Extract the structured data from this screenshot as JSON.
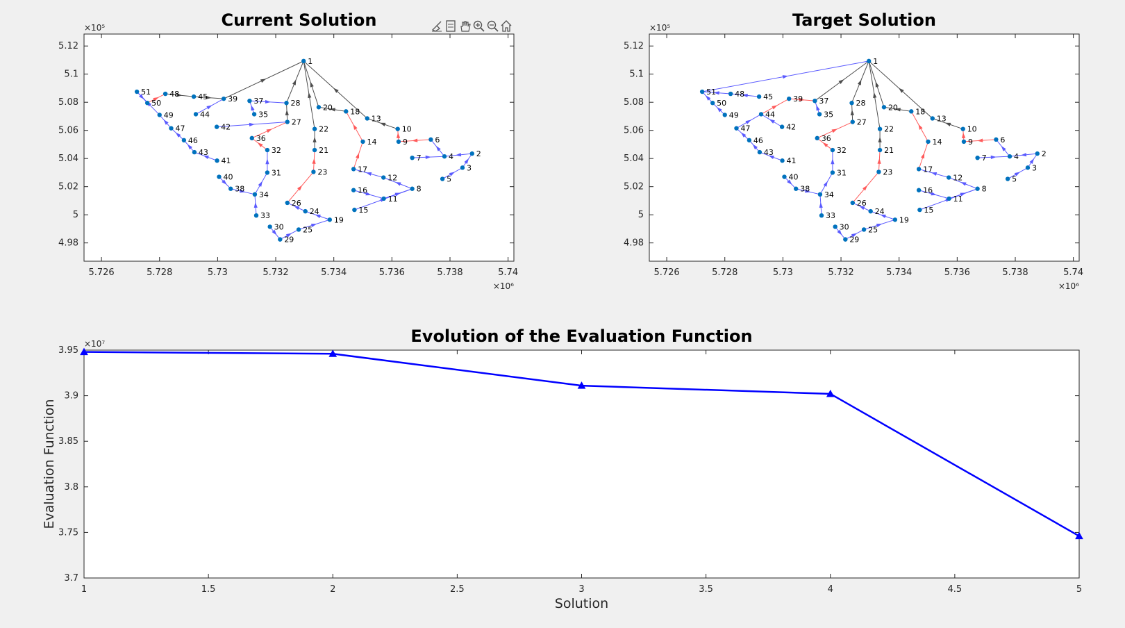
{
  "toolbar": {
    "icons": [
      "brush-icon",
      "datatip-icon",
      "pan-icon",
      "zoom-in-icon",
      "zoom-out-icon",
      "home-icon"
    ]
  },
  "colors": {
    "node": "#0072bd",
    "edge_gray": "#4d4d4d",
    "edge_blue": "#5a5aff",
    "edge_red": "#ff5a5a",
    "line": "#0000ff"
  },
  "chart_data": [
    {
      "type": "scatter",
      "title": "Current Solution",
      "xlim": [
        5725400.0,
        5740200.0
      ],
      "ylim": [
        496700.0,
        512850.0
      ],
      "x_ticks": [
        5726000.0,
        5728000.0,
        5730000.0,
        5732000.0,
        5734000.0,
        5736000.0,
        5738000.0,
        5740000.0
      ],
      "x_tick_labels": [
        "5.726",
        "5.728",
        "5.73",
        "5.732",
        "5.734",
        "5.736",
        "5.738",
        "5.74"
      ],
      "y_ticks": [
        498000.0,
        500000.0,
        502000.0,
        504000.0,
        506000.0,
        508000.0,
        510000.0,
        512000.0
      ],
      "y_tick_labels": [
        "4.98",
        "5",
        "5.02",
        "5.04",
        "5.06",
        "5.08",
        "5.1",
        "5.12"
      ],
      "x_exponent": "×10⁶",
      "y_exponent": "×10⁵",
      "grid": false,
      "nodes": [
        {
          "id": "1",
          "x": 5732960.0,
          "y": 510930.0
        },
        {
          "id": "2",
          "x": 5738760.0,
          "y": 504350.0
        },
        {
          "id": "3",
          "x": 5738430.0,
          "y": 503350.0
        },
        {
          "id": "4",
          "x": 5737810.0,
          "y": 504150.0
        },
        {
          "id": "5",
          "x": 5737740.0,
          "y": 502550.0
        },
        {
          "id": "6",
          "x": 5737340.0,
          "y": 505350.0
        },
        {
          "id": "7",
          "x": 5736700.0,
          "y": 504050.0
        },
        {
          "id": "8",
          "x": 5736700.0,
          "y": 501850.0
        },
        {
          "id": "9",
          "x": 5736230.0,
          "y": 505200.0
        },
        {
          "id": "10",
          "x": 5736200.0,
          "y": 506100.0
        },
        {
          "id": "11",
          "x": 5735720.0,
          "y": 501150.0
        },
        {
          "id": "12",
          "x": 5735710.0,
          "y": 502650.0
        },
        {
          "id": "13",
          "x": 5735150.0,
          "y": 506850.0
        },
        {
          "id": "14",
          "x": 5735000.0,
          "y": 505200.0
        },
        {
          "id": "15",
          "x": 5734710.0,
          "y": 500350.0
        },
        {
          "id": "16",
          "x": 5734680.0,
          "y": 501750.0
        },
        {
          "id": "17",
          "x": 5734680.0,
          "y": 503250.0
        },
        {
          "id": "18",
          "x": 5734420.0,
          "y": 507350.0
        },
        {
          "id": "19",
          "x": 5733860.0,
          "y": 499650.0
        },
        {
          "id": "20",
          "x": 5733480.0,
          "y": 507650.0
        },
        {
          "id": "21",
          "x": 5733340.0,
          "y": 504600.0
        },
        {
          "id": "22",
          "x": 5733340.0,
          "y": 506100.0
        },
        {
          "id": "23",
          "x": 5733300.0,
          "y": 503050.0
        },
        {
          "id": "24",
          "x": 5733020.0,
          "y": 500250.0
        },
        {
          "id": "25",
          "x": 5732790.0,
          "y": 498950.0
        },
        {
          "id": "26",
          "x": 5732400.0,
          "y": 500850.0
        },
        {
          "id": "27",
          "x": 5732400.0,
          "y": 506600.0
        },
        {
          "id": "28",
          "x": 5732370.0,
          "y": 507950.0
        },
        {
          "id": "29",
          "x": 5732150.0,
          "y": 498250.0
        },
        {
          "id": "30",
          "x": 5731800.0,
          "y": 499150.0
        },
        {
          "id": "31",
          "x": 5731710.0,
          "y": 503000.0
        },
        {
          "id": "32",
          "x": 5731710.0,
          "y": 504600.0
        },
        {
          "id": "33",
          "x": 5731330.0,
          "y": 499950.0
        },
        {
          "id": "34",
          "x": 5731280.0,
          "y": 501450.0
        },
        {
          "id": "35",
          "x": 5731260.0,
          "y": 507150.0
        },
        {
          "id": "36",
          "x": 5731180.0,
          "y": 505450.0
        },
        {
          "id": "37",
          "x": 5731100.0,
          "y": 508100.0
        },
        {
          "id": "38",
          "x": 5730450.0,
          "y": 501850.0
        },
        {
          "id": "39",
          "x": 5730210.0,
          "y": 508250.0
        },
        {
          "id": "40",
          "x": 5730050.0,
          "y": 502700.0
        },
        {
          "id": "41",
          "x": 5729980.0,
          "y": 503850.0
        },
        {
          "id": "42",
          "x": 5729970.0,
          "y": 506250.0
        },
        {
          "id": "43",
          "x": 5729200.0,
          "y": 504450.0
        },
        {
          "id": "44",
          "x": 5729250.0,
          "y": 507150.0
        },
        {
          "id": "45",
          "x": 5729180.0,
          "y": 508400.0
        },
        {
          "id": "46",
          "x": 5728840.0,
          "y": 505300.0
        },
        {
          "id": "47",
          "x": 5728400.0,
          "y": 506150.0
        },
        {
          "id": "48",
          "x": 5728200.0,
          "y": 508600.0
        },
        {
          "id": "49",
          "x": 5728000.0,
          "y": 507100.0
        },
        {
          "id": "50",
          "x": 5727580.0,
          "y": 507950.0
        },
        {
          "id": "51",
          "x": 5727220.0,
          "y": 508750.0
        }
      ],
      "edges": [
        [
          "39",
          "1",
          "gray"
        ],
        [
          "28",
          "1",
          "gray"
        ],
        [
          "20",
          "1",
          "gray"
        ],
        [
          "22",
          "1",
          "gray"
        ],
        [
          "13",
          "1",
          "gray"
        ],
        [
          "27",
          "28",
          "gray"
        ],
        [
          "21",
          "22",
          "gray"
        ],
        [
          "10",
          "13",
          "gray"
        ],
        [
          "23",
          "21",
          "red"
        ],
        [
          "26",
          "23",
          "red"
        ],
        [
          "14",
          "18",
          "red"
        ],
        [
          "17",
          "14",
          "red"
        ],
        [
          "9",
          "10",
          "red"
        ],
        [
          "6",
          "9",
          "red"
        ],
        [
          "42",
          "27",
          "blue"
        ],
        [
          "36",
          "27",
          "red"
        ],
        [
          "32",
          "36",
          "red"
        ],
        [
          "31",
          "32",
          "blue"
        ],
        [
          "34",
          "31",
          "blue"
        ],
        [
          "33",
          "34",
          "blue"
        ],
        [
          "38",
          "34",
          "blue"
        ],
        [
          "40",
          "38",
          "blue"
        ],
        [
          "35",
          "37",
          "blue"
        ],
        [
          "37",
          "28",
          "blue"
        ],
        [
          "44",
          "39",
          "blue"
        ],
        [
          "45",
          "39",
          "gray"
        ],
        [
          "48",
          "45",
          "gray"
        ],
        [
          "50",
          "48",
          "red"
        ],
        [
          "51",
          "50",
          "blue"
        ],
        [
          "49",
          "51",
          "blue"
        ],
        [
          "47",
          "49",
          "blue"
        ],
        [
          "46",
          "47",
          "blue"
        ],
        [
          "43",
          "46",
          "blue"
        ],
        [
          "41",
          "43",
          "blue"
        ],
        [
          "18",
          "20",
          "gray"
        ],
        [
          "12",
          "17",
          "blue"
        ],
        [
          "8",
          "12",
          "blue"
        ],
        [
          "11",
          "8",
          "blue"
        ],
        [
          "16",
          "11",
          "blue"
        ],
        [
          "15",
          "8",
          "blue"
        ],
        [
          "24",
          "26",
          "blue"
        ],
        [
          "19",
          "24",
          "blue"
        ],
        [
          "25",
          "19",
          "blue"
        ],
        [
          "29",
          "25",
          "blue"
        ],
        [
          "30",
          "29",
          "blue"
        ],
        [
          "2",
          "4",
          "blue"
        ],
        [
          "3",
          "2",
          "blue"
        ],
        [
          "5",
          "3",
          "blue"
        ],
        [
          "4",
          "6",
          "blue"
        ],
        [
          "7",
          "4",
          "blue"
        ]
      ]
    },
    {
      "type": "scatter",
      "title": "Target Solution",
      "xlim": [
        5725400.0,
        5740200.0
      ],
      "ylim": [
        496700.0,
        512850.0
      ],
      "x_ticks": [
        5726000.0,
        5728000.0,
        5730000.0,
        5732000.0,
        5734000.0,
        5736000.0,
        5738000.0,
        5740000.0
      ],
      "x_tick_labels": [
        "5.726",
        "5.728",
        "5.73",
        "5.732",
        "5.734",
        "5.736",
        "5.738",
        "5.74"
      ],
      "y_ticks": [
        498000.0,
        500000.0,
        502000.0,
        504000.0,
        506000.0,
        508000.0,
        510000.0,
        512000.0
      ],
      "y_tick_labels": [
        "4.98",
        "5",
        "5.02",
        "5.04",
        "5.06",
        "5.08",
        "5.1",
        "5.12"
      ],
      "x_exponent": "×10⁶",
      "y_exponent": "×10⁵",
      "grid": false,
      "nodes_same_as_current": true,
      "edges": [
        [
          "51",
          "1",
          "blue"
        ],
        [
          "37",
          "1",
          "gray"
        ],
        [
          "28",
          "1",
          "gray"
        ],
        [
          "20",
          "1",
          "gray"
        ],
        [
          "22",
          "1",
          "gray"
        ],
        [
          "13",
          "1",
          "gray"
        ],
        [
          "27",
          "28",
          "gray"
        ],
        [
          "21",
          "22",
          "gray"
        ],
        [
          "10",
          "13",
          "gray"
        ],
        [
          "23",
          "21",
          "red"
        ],
        [
          "26",
          "23",
          "red"
        ],
        [
          "14",
          "18",
          "red"
        ],
        [
          "17",
          "14",
          "red"
        ],
        [
          "9",
          "10",
          "red"
        ],
        [
          "6",
          "9",
          "red"
        ],
        [
          "36",
          "27",
          "red"
        ],
        [
          "32",
          "36",
          "red"
        ],
        [
          "31",
          "32",
          "blue"
        ],
        [
          "34",
          "31",
          "blue"
        ],
        [
          "33",
          "34",
          "blue"
        ],
        [
          "38",
          "34",
          "blue"
        ],
        [
          "40",
          "38",
          "blue"
        ],
        [
          "35",
          "37",
          "blue"
        ],
        [
          "39",
          "37",
          "red"
        ],
        [
          "44",
          "39",
          "red"
        ],
        [
          "42",
          "44",
          "blue"
        ],
        [
          "47",
          "44",
          "blue"
        ],
        [
          "45",
          "48",
          "blue"
        ],
        [
          "48",
          "51",
          "blue"
        ],
        [
          "50",
          "51",
          "blue"
        ],
        [
          "49",
          "50",
          "blue"
        ],
        [
          "46",
          "47",
          "blue"
        ],
        [
          "43",
          "46",
          "blue"
        ],
        [
          "41",
          "43",
          "blue"
        ],
        [
          "18",
          "20",
          "gray"
        ],
        [
          "12",
          "17",
          "blue"
        ],
        [
          "8",
          "12",
          "blue"
        ],
        [
          "11",
          "8",
          "blue"
        ],
        [
          "16",
          "11",
          "blue"
        ],
        [
          "15",
          "8",
          "blue"
        ],
        [
          "24",
          "26",
          "blue"
        ],
        [
          "19",
          "24",
          "blue"
        ],
        [
          "25",
          "19",
          "blue"
        ],
        [
          "29",
          "25",
          "blue"
        ],
        [
          "30",
          "29",
          "blue"
        ],
        [
          "2",
          "4",
          "blue"
        ],
        [
          "3",
          "2",
          "blue"
        ],
        [
          "5",
          "3",
          "blue"
        ],
        [
          "4",
          "6",
          "blue"
        ],
        [
          "7",
          "4",
          "blue"
        ]
      ]
    },
    {
      "type": "line",
      "title": "Evolution of the Evaluation Function",
      "xlabel": "Solution",
      "ylabel": "Evaluation Function",
      "x": [
        1,
        2,
        3,
        4,
        5
      ],
      "y": [
        39480000.0,
        39460000.0,
        39110000.0,
        39020000.0,
        37460000.0
      ],
      "xlim": [
        1,
        5
      ],
      "ylim": [
        37000000.0,
        39500000.0
      ],
      "x_ticks": [
        1,
        1.5,
        2,
        2.5,
        3,
        3.5,
        4,
        4.5,
        5
      ],
      "x_tick_labels": [
        "1",
        "1.5",
        "2",
        "2.5",
        "3",
        "3.5",
        "4",
        "4.5",
        "5"
      ],
      "y_ticks": [
        37000000.0,
        37500000.0,
        38000000.0,
        38500000.0,
        39000000.0,
        39500000.0
      ],
      "y_tick_labels": [
        "3.7",
        "3.75",
        "3.8",
        "3.85",
        "3.9",
        "3.95"
      ],
      "y_exponent": "×10⁷",
      "grid": false
    }
  ]
}
